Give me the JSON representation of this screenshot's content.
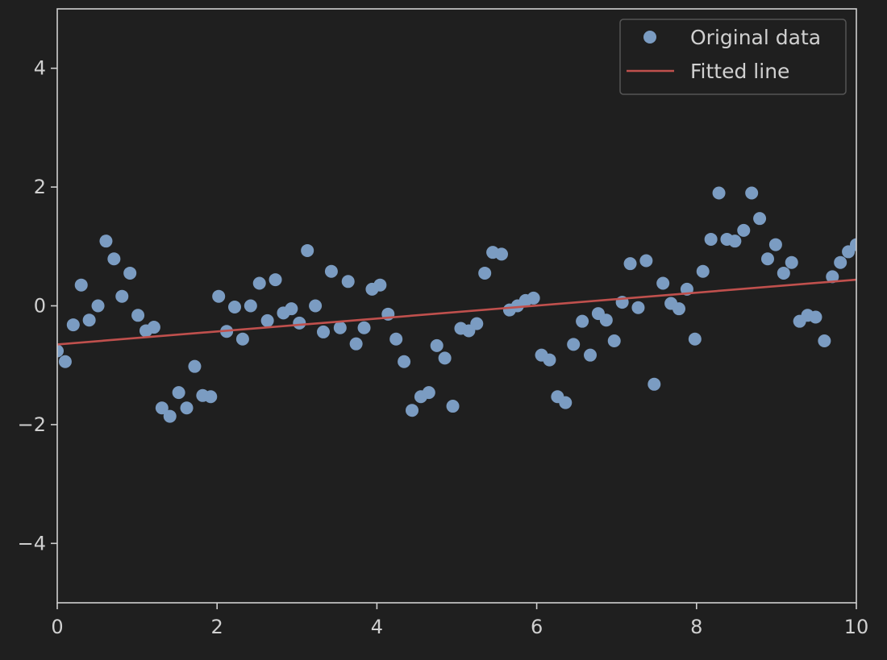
{
  "chart_data": {
    "type": "scatter",
    "title": "",
    "xlabel": "",
    "ylabel": "",
    "xlim": [
      0,
      10
    ],
    "ylim": [
      -5,
      5
    ],
    "xticks": [
      0,
      2,
      4,
      6,
      8,
      10
    ],
    "yticks": [
      -4,
      -2,
      0,
      2,
      4
    ],
    "x_tick_labels": [
      "0",
      "2",
      "4",
      "6",
      "8",
      "10"
    ],
    "y_tick_labels": [
      "−4",
      "−2",
      "0",
      "2",
      "4"
    ],
    "grid": false,
    "legend_position": "top-right",
    "series": [
      {
        "name": "Original data",
        "kind": "scatter",
        "color": "#7b9cc2",
        "points": [
          [
            0.0,
            -0.76
          ],
          [
            0.1,
            -0.94
          ],
          [
            0.2,
            -0.32
          ],
          [
            0.3,
            0.35
          ],
          [
            0.4,
            -0.24
          ],
          [
            0.51,
            0.0
          ],
          [
            0.61,
            1.09
          ],
          [
            0.71,
            0.79
          ],
          [
            0.81,
            0.16
          ],
          [
            0.91,
            0.55
          ],
          [
            1.01,
            -0.16
          ],
          [
            1.11,
            -0.42
          ],
          [
            1.21,
            -0.36
          ],
          [
            1.31,
            -1.72
          ],
          [
            1.41,
            -1.86
          ],
          [
            1.52,
            -1.46
          ],
          [
            1.62,
            -1.72
          ],
          [
            1.72,
            -1.02
          ],
          [
            1.82,
            -1.51
          ],
          [
            1.92,
            -1.53
          ],
          [
            2.02,
            0.16
          ],
          [
            2.12,
            -0.43
          ],
          [
            2.22,
            -0.02
          ],
          [
            2.32,
            -0.56
          ],
          [
            2.42,
            0.0
          ],
          [
            2.53,
            0.38
          ],
          [
            2.63,
            -0.25
          ],
          [
            2.73,
            0.44
          ],
          [
            2.83,
            -0.12
          ],
          [
            2.93,
            -0.05
          ],
          [
            3.03,
            -0.29
          ],
          [
            3.13,
            0.93
          ],
          [
            3.23,
            0.0
          ],
          [
            3.33,
            -0.44
          ],
          [
            3.43,
            0.58
          ],
          [
            3.54,
            -0.37
          ],
          [
            3.64,
            0.41
          ],
          [
            3.74,
            -0.64
          ],
          [
            3.84,
            -0.37
          ],
          [
            3.94,
            0.28
          ],
          [
            4.04,
            0.35
          ],
          [
            4.14,
            -0.14
          ],
          [
            4.24,
            -0.56
          ],
          [
            4.34,
            -0.94
          ],
          [
            4.44,
            -1.76
          ],
          [
            4.55,
            -1.53
          ],
          [
            4.65,
            -1.46
          ],
          [
            4.75,
            -0.67
          ],
          [
            4.85,
            -0.88
          ],
          [
            4.95,
            -1.69
          ],
          [
            5.05,
            -0.38
          ],
          [
            5.15,
            -0.42
          ],
          [
            5.25,
            -0.3
          ],
          [
            5.35,
            0.55
          ],
          [
            5.45,
            0.9
          ],
          [
            5.56,
            0.87
          ],
          [
            5.66,
            -0.07
          ],
          [
            5.76,
            0.0
          ],
          [
            5.86,
            0.09
          ],
          [
            5.96,
            0.13
          ],
          [
            6.06,
            -0.83
          ],
          [
            6.16,
            -0.91
          ],
          [
            6.26,
            -1.53
          ],
          [
            6.36,
            -1.63
          ],
          [
            6.46,
            -0.65
          ],
          [
            6.57,
            -0.26
          ],
          [
            6.67,
            -0.83
          ],
          [
            6.77,
            -0.13
          ],
          [
            6.87,
            -0.24
          ],
          [
            6.97,
            -0.59
          ],
          [
            7.07,
            0.06
          ],
          [
            7.17,
            0.71
          ],
          [
            7.27,
            -0.03
          ],
          [
            7.37,
            0.76
          ],
          [
            7.47,
            -1.32
          ],
          [
            7.58,
            0.38
          ],
          [
            7.68,
            0.04
          ],
          [
            7.78,
            -0.05
          ],
          [
            7.88,
            0.28
          ],
          [
            7.98,
            -0.56
          ],
          [
            8.08,
            0.58
          ],
          [
            8.18,
            1.12
          ],
          [
            8.28,
            1.9
          ],
          [
            8.38,
            1.12
          ],
          [
            8.48,
            1.09
          ],
          [
            8.59,
            1.27
          ],
          [
            8.69,
            1.9
          ],
          [
            8.79,
            1.47
          ],
          [
            8.89,
            0.79
          ],
          [
            8.99,
            1.03
          ],
          [
            9.09,
            0.55
          ],
          [
            9.19,
            0.73
          ],
          [
            9.29,
            -0.26
          ],
          [
            9.39,
            -0.16
          ],
          [
            9.49,
            -0.19
          ],
          [
            9.6,
            -0.59
          ],
          [
            9.7,
            0.49
          ],
          [
            9.8,
            0.73
          ],
          [
            9.9,
            0.91
          ],
          [
            10.0,
            1.03
          ]
        ]
      },
      {
        "name": "Fitted line",
        "kind": "line",
        "color": "#c0504d",
        "points": [
          [
            0,
            -0.65
          ],
          [
            10,
            0.44
          ]
        ]
      }
    ]
  }
}
